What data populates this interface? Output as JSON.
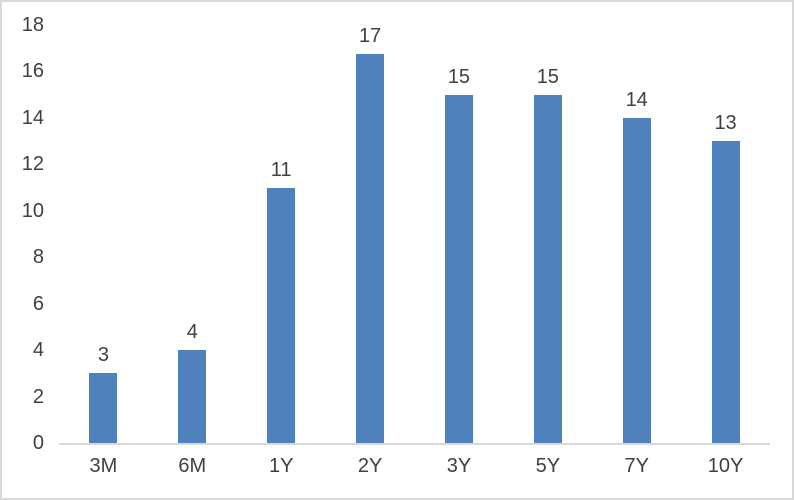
{
  "chart_data": {
    "type": "bar",
    "title": "",
    "xlabel": "",
    "ylabel": "",
    "categories": [
      "3M",
      "6M",
      "1Y",
      "2Y",
      "3Y",
      "5Y",
      "7Y",
      "10Y"
    ],
    "values": [
      3,
      4,
      11,
      17,
      15,
      15,
      14,
      13
    ],
    "data_labels": [
      3,
      4,
      11,
      17,
      15,
      15,
      14,
      13
    ],
    "ylim": [
      0,
      18
    ],
    "yticks": [
      0,
      2,
      4,
      6,
      8,
      10,
      12,
      14,
      16,
      18
    ],
    "grid": false,
    "legend": "none",
    "colors": {
      "bar_fill": "#4f81bd",
      "axis_line": "#d9d9d9",
      "frame_border": "#d9d9d9",
      "label_text": "#404040"
    }
  }
}
